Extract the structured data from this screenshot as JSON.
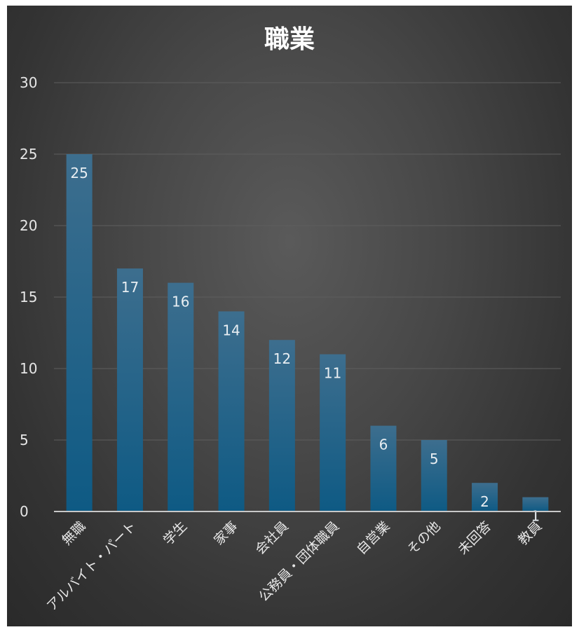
{
  "chart_data": {
    "type": "bar",
    "title": "職業",
    "xlabel": "",
    "ylabel": "",
    "categories": [
      "無職",
      "アルバイト・パート",
      "学生",
      "家事",
      "会社員",
      "公務員・団体職員",
      "自営業",
      "その他",
      "未回答",
      "教員"
    ],
    "values": [
      25,
      17,
      16,
      14,
      12,
      11,
      6,
      5,
      2,
      1
    ],
    "ylim": [
      0,
      30
    ],
    "yticks": [
      0,
      5,
      10,
      15,
      20,
      25,
      30
    ],
    "grid": true,
    "data_labels": true,
    "legend": "none",
    "colors": {
      "bar_top": "#3d6e8e",
      "bar_bottom": "#0e5a84",
      "background": "#3a3a3a"
    }
  }
}
